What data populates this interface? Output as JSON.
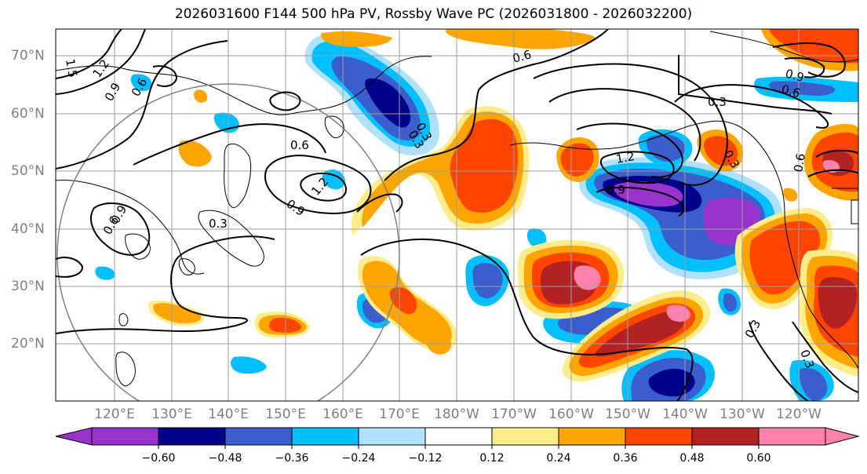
{
  "title": "2026031600 F144 500 hPa PV, Rossby Wave PC (2026031800 - 2026032200)",
  "lat_labels": [
    "70°N",
    "60°N",
    "50°N",
    "40°N",
    "30°N",
    "20°N"
  ],
  "lon_labels": [
    "120°E",
    "130°E",
    "140°E",
    "150°E",
    "160°E",
    "170°E",
    "180°W",
    "170°W",
    "160°W",
    "150°W",
    "140°W",
    "130°W",
    "120°W"
  ],
  "colorbar": {
    "ticks": [
      "−0.60",
      "−0.48",
      "−0.36",
      "−0.24",
      "−0.12",
      "0.12",
      "0.24",
      "0.36",
      "0.48",
      "0.60"
    ],
    "colors": [
      "#9a32cd",
      "#00008b",
      "#3a5fcd",
      "#00bfff",
      "#b0e2ff",
      "#ffffff",
      "#ffec8b",
      "#ffa500",
      "#ff4500",
      "#b22222",
      "#ff82ab"
    ]
  },
  "contour_labels": [
    "1.2",
    "0.9",
    "0.6",
    "0.6",
    "0.9",
    "1.2",
    "0.3",
    "0.6",
    "0.9",
    "0.3",
    "0.6",
    "0.3",
    "1.2",
    "0.9",
    "0.3",
    "0.6",
    "0.9",
    "0.6",
    "0.3",
    "0.3",
    "0.3",
    "1.5"
  ],
  "colors": {
    "purple": "#9a32cd",
    "navy": "#00008b",
    "royal": "#3a5fcd",
    "sky": "#00bfff",
    "pale": "#b0e2ff",
    "yellow": "#ffec8b",
    "orange": "#ffa500",
    "red": "#ff4500",
    "darkred": "#b22222",
    "pink": "#ff82ab"
  }
}
